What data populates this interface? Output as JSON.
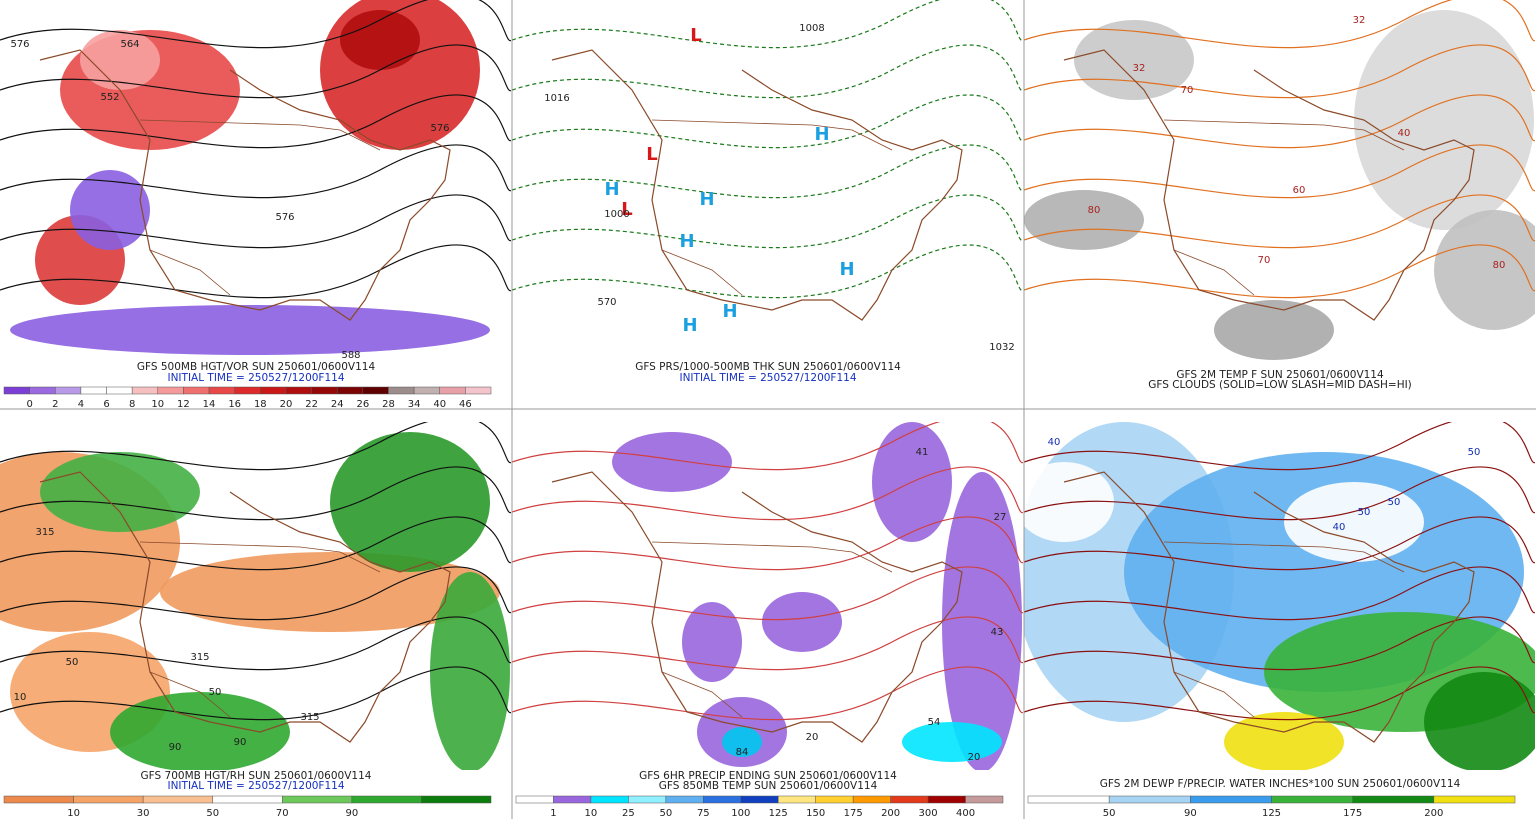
{
  "panels": [
    {
      "caption": [
        "GFS 500MB HGT/VOR SUN 250601/0600V114",
        "INITIAL TIME = 250527/1200F114"
      ],
      "colorbar": [
        "0",
        "2",
        "4",
        "6",
        "8",
        "10",
        "12",
        "14",
        "16",
        "18",
        "20",
        "22",
        "24",
        "26",
        "28",
        "34",
        "40",
        "46"
      ],
      "map_labels": [
        "576",
        "564",
        "552",
        "576",
        "576",
        "588"
      ]
    },
    {
      "caption": [
        "GFS PRS/1000-500MB THK SUN 250601/0600V114",
        "INITIAL TIME = 250527/1200F114"
      ],
      "map_labels": [
        "L",
        "L",
        "L",
        "H",
        "H",
        "H",
        "H",
        "H",
        "H",
        "H",
        "1032",
        "1016",
        "1008",
        "1000",
        "570"
      ]
    },
    {
      "caption": [
        "GFS 2M TEMP F SUN 250601/0600V114",
        "GFS CLOUDS (SOLID=LOW SLASH=MID DASH=HI)"
      ],
      "map_labels": [
        "32",
        "32",
        "70",
        "60",
        "80",
        "70",
        "80",
        "40"
      ]
    },
    {
      "caption": [
        "GFS 700MB HGT/RH SUN 250601/0600V114",
        "INITIAL TIME = 250527/1200F114"
      ],
      "colorbar": [
        "10",
        "30",
        "50",
        "70",
        "90"
      ],
      "map_labels": [
        "315",
        "50",
        "10",
        "315",
        "50",
        "90",
        "90",
        "315"
      ]
    },
    {
      "caption": [
        "GFS 6HR PRECIP ENDING SUN 250601/0600V114",
        "GFS 850MB TEMP SUN 250601/0600V114"
      ],
      "colorbar": [
        "1",
        "10",
        "25",
        "50",
        "75",
        "100",
        "125",
        "150",
        "175",
        "200",
        "300",
        "400"
      ],
      "map_labels": [
        "41",
        "27",
        "43",
        "54",
        "20",
        "84",
        "20"
      ]
    },
    {
      "caption": [
        "GFS 2M DEWP F/PRECIP. WATER INCHES*100 SUN 250601/0600V114"
      ],
      "colorbar": [
        "50",
        "90",
        "125",
        "175",
        "200"
      ],
      "map_labels": [
        "40",
        "50",
        "50",
        "40",
        "50"
      ]
    }
  ]
}
